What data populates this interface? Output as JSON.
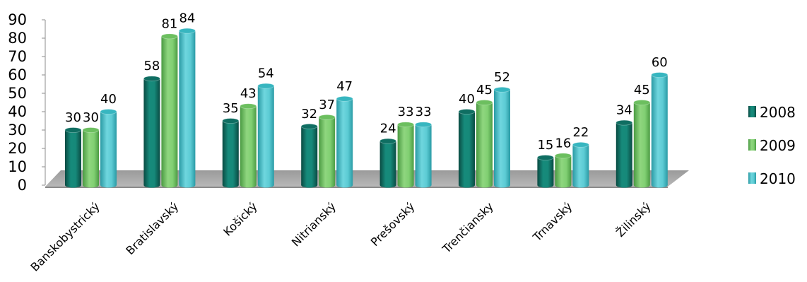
{
  "chart_data": {
    "type": "bar",
    "categories": [
      "Banskobystrický",
      "Bratislavský",
      "Košický",
      "Nitrianský",
      "Prešovský",
      "Trenčiansky",
      "Trnavský",
      "Žilinský"
    ],
    "series": [
      {
        "name": "2008",
        "values": [
          30,
          58,
          35,
          32,
          24,
          40,
          15,
          34
        ]
      },
      {
        "name": "2009",
        "values": [
          30,
          81,
          43,
          37,
          33,
          45,
          16,
          45
        ]
      },
      {
        "name": "2010",
        "values": [
          40,
          84,
          54,
          47,
          33,
          52,
          22,
          60
        ]
      }
    ],
    "yticks": [
      "0",
      "10",
      "20",
      "30",
      "40",
      "50",
      "60",
      "70",
      "80",
      "90"
    ],
    "ylim": [
      0,
      90
    ],
    "legend_position": "right",
    "colors": {
      "2008": "#0f6e62",
      "2009": "#6cbf5f",
      "2010": "#37b6c0",
      "floor": "#a8a8a8"
    }
  }
}
